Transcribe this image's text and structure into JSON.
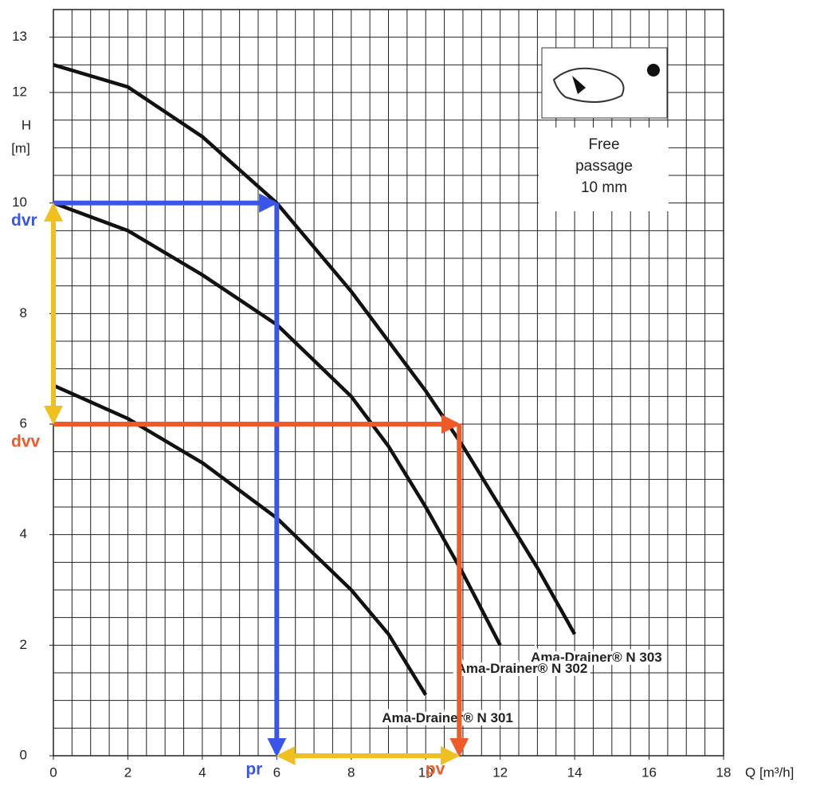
{
  "chart_data": {
    "type": "line",
    "y_label": "H",
    "y_unit": "[m]",
    "x_label": "Q [m³/h]",
    "xlim": [
      0,
      18
    ],
    "ylim": [
      0,
      13.5
    ],
    "xticks": [
      0,
      2,
      4,
      6,
      8,
      10,
      12,
      14,
      16,
      18
    ],
    "yticks": [
      0,
      2,
      4,
      6,
      8,
      10,
      12,
      13
    ],
    "grid_step_x": 0.5,
    "grid_step_y": 0.5,
    "series": [
      {
        "name": "Ama-Drainer® N 303",
        "color": "#111111",
        "x": [
          0,
          2,
          4,
          6,
          8,
          10,
          11,
          12,
          13,
          14
        ],
        "values": [
          12.5,
          12.1,
          11.2,
          10,
          8.4,
          6.6,
          5.6,
          4.5,
          3.4,
          2.2
        ]
      },
      {
        "name": "Ama-Drainer® N 302",
        "color": "#111111",
        "x": [
          0,
          2,
          4,
          6,
          8,
          9,
          10,
          11,
          12
        ],
        "values": [
          10,
          9.5,
          8.7,
          7.8,
          6.5,
          5.6,
          4.5,
          3.3,
          2
        ]
      },
      {
        "name": "Ama-Drainer® N 301",
        "color": "#111111",
        "x": [
          0,
          2,
          4,
          6,
          8,
          9,
          10
        ],
        "values": [
          6.7,
          6.1,
          5.3,
          4.3,
          3,
          2.2,
          1.1
        ]
      }
    ],
    "guides": [
      {
        "x": 6,
        "y": 10,
        "color": "#3a56e8",
        "x_label": "pr",
        "y_label": "dvr"
      },
      {
        "x": 10.9,
        "y": 6,
        "color": "#f05a28",
        "x_label": "pv",
        "y_label": "dvv"
      }
    ],
    "span_color": "#f0c020",
    "inset_text": [
      "Free",
      "passage",
      "10 mm"
    ]
  }
}
